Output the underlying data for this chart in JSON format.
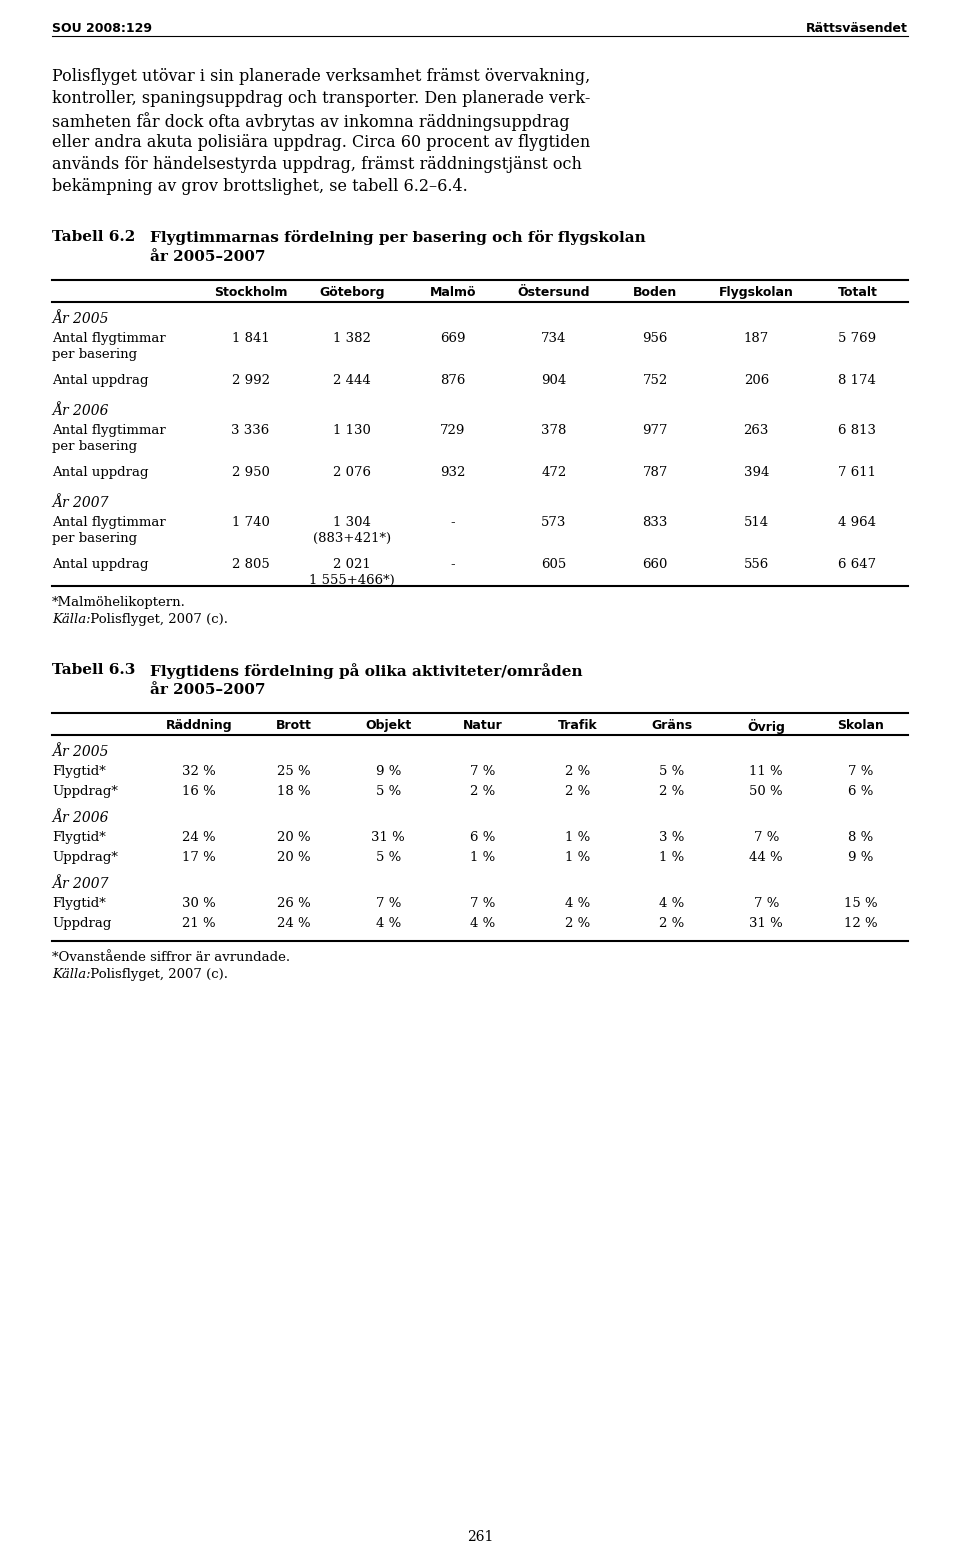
{
  "page_header_left": "SOU 2008:129",
  "page_header_right": "Rättsväsendet",
  "body_lines": [
    "Polisflyget utövar i sin planerade verksamhet främst övervakning,",
    "kontroller, spaningsuppdrag och transporter. Den planerade verk-",
    "samheten får dock ofta avbrytas av inkomna räddningsuppdrag",
    "eller andra akuta polisiära uppdrag. Circa 60 procent av flygtiden",
    "används för händelsestyrda uppdrag, främst räddningstjänst och",
    "bekämpning av grov brottslighet, se tabell 6.2–6.4."
  ],
  "table1_label": "Tabell 6.2",
  "table1_title_line1": "Flygtimmarnas fördelning per basering och för flygskolan",
  "table1_title_line2": "år 2005–2007",
  "table1_headers": [
    "Stockholm",
    "Göteborg",
    "Malmö",
    "Östersund",
    "Boden",
    "Flygskolan",
    "Totalt"
  ],
  "table1_sections": [
    {
      "year_label": "År 2005",
      "rows": [
        {
          "label": [
            "Antal flygtimmar",
            "per basering"
          ],
          "values": [
            "1 841",
            "1 382",
            "669",
            "734",
            "956",
            "187",
            "5 769"
          ]
        },
        {
          "label": [
            "Antal uppdrag"
          ],
          "values": [
            "2 992",
            "2 444",
            "876",
            "904",
            "752",
            "206",
            "8 174"
          ]
        }
      ]
    },
    {
      "year_label": "År 2006",
      "rows": [
        {
          "label": [
            "Antal flygtimmar",
            "per basering"
          ],
          "values": [
            "3 336",
            "1 130",
            "729",
            "378",
            "977",
            "263",
            "6 813"
          ]
        },
        {
          "label": [
            "Antal uppdrag"
          ],
          "values": [
            "2 950",
            "2 076",
            "932",
            "472",
            "787",
            "394",
            "7 611"
          ]
        }
      ]
    },
    {
      "year_label": "År 2007",
      "rows": [
        {
          "label": [
            "Antal flygtimmar",
            "per basering"
          ],
          "values": [
            "1 740",
            "1 304\n(883+421*)",
            "-",
            "573",
            "833",
            "514",
            "4 964"
          ]
        },
        {
          "label": [
            "Antal uppdrag"
          ],
          "values": [
            "2 805",
            "2 021\n1 555+466*)",
            "-",
            "605",
            "660",
            "556",
            "6 647"
          ]
        }
      ]
    }
  ],
  "table1_footnote1": "*Malmöhelikoptern.",
  "table1_footnote2": "Källa: Polisflyget, 2007 (c).",
  "table2_label": "Tabell 6.3",
  "table2_title_line1": "Flygtidens fördelning på olika aktiviteter/områden",
  "table2_title_line2": "år 2005–2007",
  "table2_headers": [
    "Räddning",
    "Brott",
    "Objekt",
    "Natur",
    "Trafik",
    "Gräns",
    "Övrig",
    "Skolan"
  ],
  "table2_sections": [
    {
      "year_label": "År 2005",
      "rows": [
        {
          "label": "Flygtid*",
          "values": [
            "32 %",
            "25 %",
            "9 %",
            "7 %",
            "2 %",
            "5 %",
            "11 %",
            "7 %"
          ]
        },
        {
          "label": "Uppdrag*",
          "values": [
            "16 %",
            "18 %",
            "5 %",
            "2 %",
            "2 %",
            "2 %",
            "50 %",
            "6 %"
          ]
        }
      ]
    },
    {
      "year_label": "År 2006",
      "rows": [
        {
          "label": "Flygtid*",
          "values": [
            "24 %",
            "20 %",
            "31 %",
            "6 %",
            "1 %",
            "3 %",
            "7 %",
            "8 %"
          ]
        },
        {
          "label": "Uppdrag*",
          "values": [
            "17 %",
            "20 %",
            "5 %",
            "1 %",
            "1 %",
            "1 %",
            "44 %",
            "9 %"
          ]
        }
      ]
    },
    {
      "year_label": "År 2007",
      "rows": [
        {
          "label": "Flygtid*",
          "values": [
            "30 %",
            "26 %",
            "7 %",
            "7 %",
            "4 %",
            "4 %",
            "7 %",
            "15 %"
          ]
        },
        {
          "label": "Uppdrag",
          "values": [
            "21 %",
            "24 %",
            "4 %",
            "4 %",
            "2 %",
            "2 %",
            "31 %",
            "12 %"
          ]
        }
      ]
    }
  ],
  "table2_footnote1": "*Ovanstående siffror är avrundade.",
  "table2_footnote2": "Källa: Polisflyget, 2007 (c).",
  "page_number": "261"
}
